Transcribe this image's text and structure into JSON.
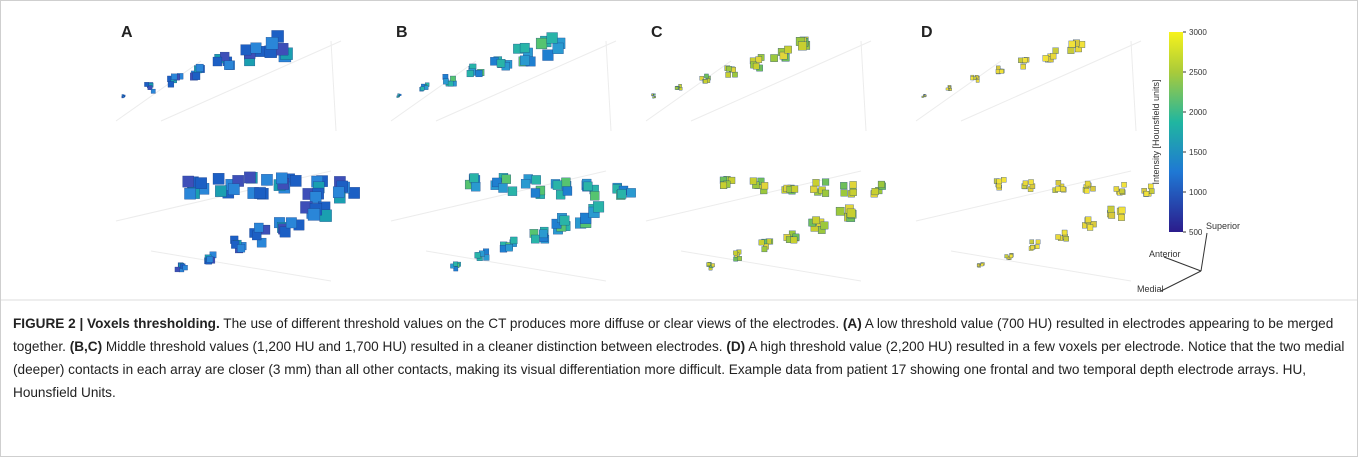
{
  "figure": {
    "panels": [
      "A",
      "B",
      "C",
      "D"
    ],
    "colorbar": {
      "label": "Intensity [Hounsfield units]",
      "lim": [
        500,
        3000
      ],
      "ticks": [
        500,
        1000,
        1500,
        2000,
        2500,
        3000
      ]
    },
    "orientation": {
      "superior": "Superior",
      "anterior": "Anterior",
      "medial": "Medial"
    }
  },
  "caption": {
    "title": "FIGURE 2 | Voxels thresholding.",
    "parts": [
      {
        "text": " The use of different threshold values on the CT produces more diffuse or clear views of the electrodes. ",
        "bold": false
      },
      {
        "text": "(A)",
        "bold": true
      },
      {
        "text": " A low threshold value (700 HU) resulted in electrodes appearing to be merged together. ",
        "bold": false
      },
      {
        "text": "(B,C)",
        "bold": true
      },
      {
        "text": " Middle threshold values (1,200 HU and 1,700 HU) resulted in a cleaner distinction between electrodes. ",
        "bold": false
      },
      {
        "text": "(D)",
        "bold": true
      },
      {
        "text": " A high threshold value (2,200 HU) resulted in a few voxels per electrode. Notice that the two medial (deeper) contacts in each array are closer (3 mm) than all other contacts, making its visual differentiation more difficult. Example data from patient 17 showing one frontal and two temporal depth electrode arrays. HU, Hounsfield Units.",
        "bold": false
      }
    ]
  }
}
